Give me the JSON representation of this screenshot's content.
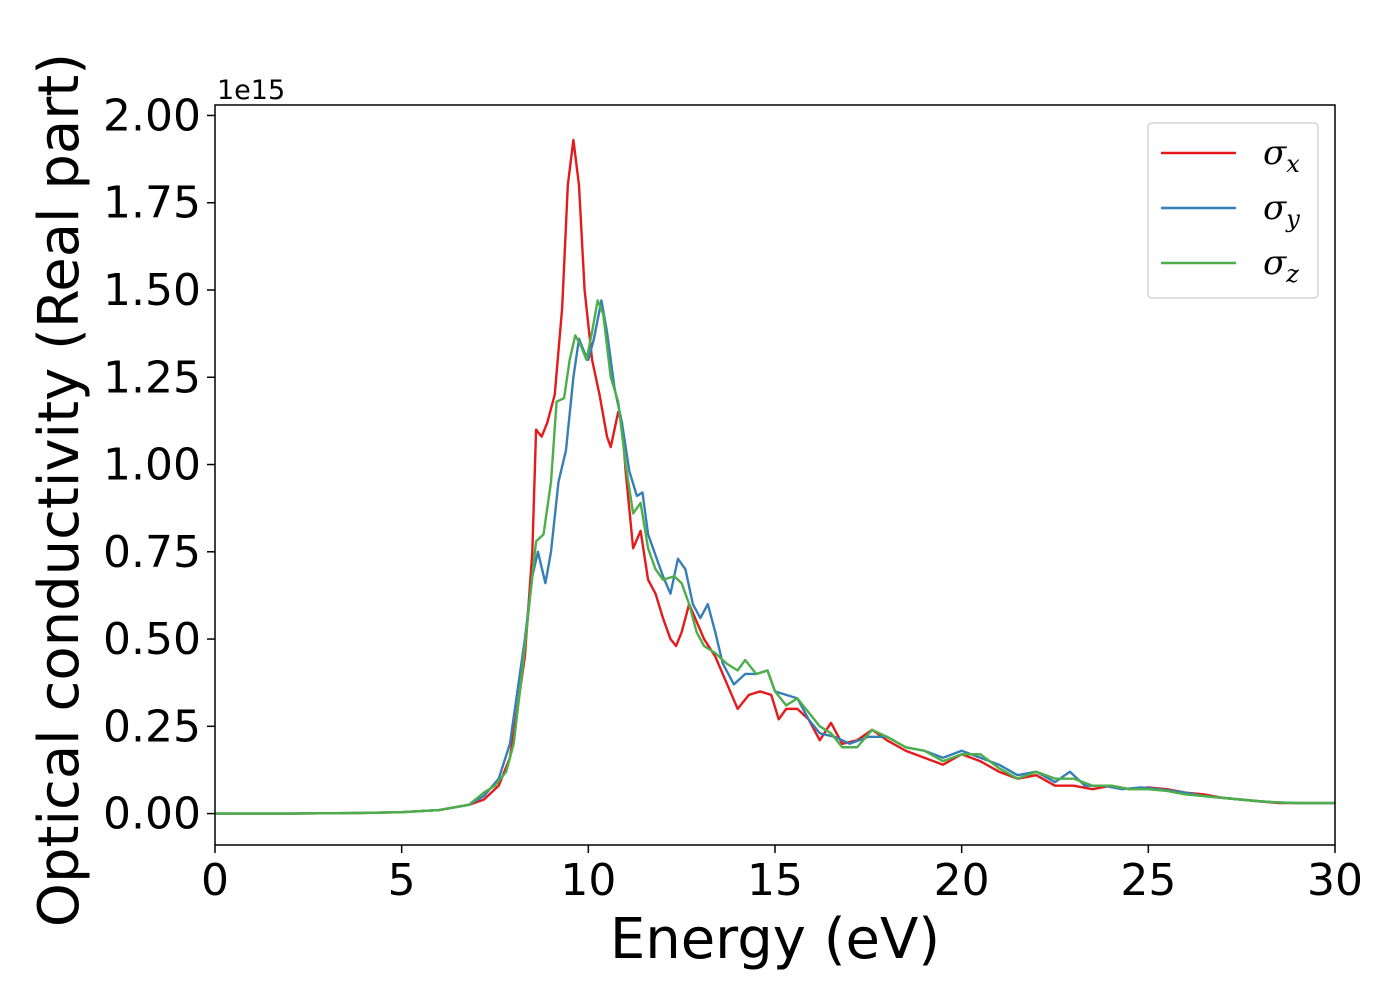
{
  "chart_data": {
    "type": "line",
    "xlabel": "Energy (eV)",
    "ylabel": "Optical conductivity (Real part)",
    "y_offset_label": "1e15",
    "y_scale_factor": 1000000000000000.0,
    "xlim": [
      0,
      30
    ],
    "ylim": [
      -0.09,
      2.03
    ],
    "xticks": [
      0,
      5,
      10,
      15,
      20,
      25,
      30
    ],
    "xtick_labels": [
      "0",
      "5",
      "10",
      "15",
      "20",
      "25",
      "30"
    ],
    "yticks": [
      0,
      0.25,
      0.5,
      0.75,
      1.0,
      1.25,
      1.5,
      1.75,
      2.0
    ],
    "ytick_labels": [
      "0.00",
      "0.25",
      "0.50",
      "0.75",
      "1.00",
      "1.25",
      "1.50",
      "1.75",
      "2.00"
    ],
    "grid": false,
    "legend_position": "top-right",
    "series": [
      {
        "name": "σx",
        "symbol": "σ",
        "subscript": "x",
        "color": "#e41a1c",
        "points": [
          [
            0,
            0
          ],
          [
            2,
            0
          ],
          [
            4,
            0.002
          ],
          [
            5,
            0.004
          ],
          [
            6,
            0.01
          ],
          [
            6.8,
            0.025
          ],
          [
            7.2,
            0.04
          ],
          [
            7.6,
            0.08
          ],
          [
            7.9,
            0.16
          ],
          [
            8.1,
            0.3
          ],
          [
            8.3,
            0.45
          ],
          [
            8.5,
            0.75
          ],
          [
            8.6,
            1.1
          ],
          [
            8.75,
            1.08
          ],
          [
            8.9,
            1.12
          ],
          [
            9.1,
            1.2
          ],
          [
            9.3,
            1.45
          ],
          [
            9.45,
            1.8
          ],
          [
            9.6,
            1.93
          ],
          [
            9.75,
            1.8
          ],
          [
            9.9,
            1.5
          ],
          [
            10.1,
            1.3
          ],
          [
            10.3,
            1.2
          ],
          [
            10.5,
            1.08
          ],
          [
            10.6,
            1.05
          ],
          [
            10.8,
            1.15
          ],
          [
            10.9,
            1.12
          ],
          [
            11.0,
            0.98
          ],
          [
            11.2,
            0.76
          ],
          [
            11.4,
            0.81
          ],
          [
            11.6,
            0.67
          ],
          [
            11.8,
            0.63
          ],
          [
            12.0,
            0.56
          ],
          [
            12.2,
            0.5
          ],
          [
            12.35,
            0.48
          ],
          [
            12.5,
            0.52
          ],
          [
            12.7,
            0.6
          ],
          [
            12.9,
            0.55
          ],
          [
            13.1,
            0.5
          ],
          [
            13.4,
            0.45
          ],
          [
            13.8,
            0.35
          ],
          [
            14.0,
            0.3
          ],
          [
            14.3,
            0.34
          ],
          [
            14.6,
            0.35
          ],
          [
            14.9,
            0.34
          ],
          [
            15.1,
            0.27
          ],
          [
            15.3,
            0.3
          ],
          [
            15.6,
            0.3
          ],
          [
            15.9,
            0.27
          ],
          [
            16.2,
            0.21
          ],
          [
            16.5,
            0.26
          ],
          [
            16.8,
            0.2
          ],
          [
            17.2,
            0.21
          ],
          [
            17.6,
            0.24
          ],
          [
            18.0,
            0.21
          ],
          [
            18.5,
            0.18
          ],
          [
            19.0,
            0.16
          ],
          [
            19.5,
            0.14
          ],
          [
            20.0,
            0.17
          ],
          [
            20.5,
            0.15
          ],
          [
            21.0,
            0.12
          ],
          [
            21.5,
            0.1
          ],
          [
            22.0,
            0.11
          ],
          [
            22.5,
            0.08
          ],
          [
            23.0,
            0.08
          ],
          [
            23.5,
            0.07
          ],
          [
            24.0,
            0.08
          ],
          [
            24.5,
            0.07
          ],
          [
            25.0,
            0.075
          ],
          [
            25.5,
            0.07
          ],
          [
            26.0,
            0.06
          ],
          [
            26.5,
            0.055
          ],
          [
            27.0,
            0.045
          ],
          [
            27.5,
            0.04
          ],
          [
            28.0,
            0.035
          ],
          [
            28.5,
            0.03
          ],
          [
            29.0,
            0.03
          ],
          [
            29.5,
            0.03
          ],
          [
            30,
            0.03
          ]
        ]
      },
      {
        "name": "σy",
        "symbol": "σ",
        "subscript": "y",
        "color": "#377eb8",
        "points": [
          [
            0,
            0
          ],
          [
            2,
            0
          ],
          [
            4,
            0.002
          ],
          [
            5,
            0.004
          ],
          [
            6,
            0.01
          ],
          [
            6.8,
            0.025
          ],
          [
            7.2,
            0.05
          ],
          [
            7.6,
            0.1
          ],
          [
            7.9,
            0.2
          ],
          [
            8.1,
            0.35
          ],
          [
            8.3,
            0.5
          ],
          [
            8.5,
            0.68
          ],
          [
            8.65,
            0.75
          ],
          [
            8.85,
            0.66
          ],
          [
            9.0,
            0.75
          ],
          [
            9.2,
            0.95
          ],
          [
            9.4,
            1.04
          ],
          [
            9.6,
            1.25
          ],
          [
            9.75,
            1.36
          ],
          [
            9.9,
            1.32
          ],
          [
            10.0,
            1.3
          ],
          [
            10.15,
            1.36
          ],
          [
            10.35,
            1.47
          ],
          [
            10.5,
            1.38
          ],
          [
            10.7,
            1.22
          ],
          [
            10.9,
            1.12
          ],
          [
            11.1,
            0.98
          ],
          [
            11.3,
            0.91
          ],
          [
            11.45,
            0.92
          ],
          [
            11.6,
            0.8
          ],
          [
            11.8,
            0.74
          ],
          [
            12.0,
            0.68
          ],
          [
            12.2,
            0.63
          ],
          [
            12.4,
            0.73
          ],
          [
            12.6,
            0.7
          ],
          [
            12.8,
            0.6
          ],
          [
            13.0,
            0.56
          ],
          [
            13.2,
            0.6
          ],
          [
            13.4,
            0.52
          ],
          [
            13.6,
            0.43
          ],
          [
            13.9,
            0.37
          ],
          [
            14.2,
            0.4
          ],
          [
            14.5,
            0.4
          ],
          [
            14.8,
            0.41
          ],
          [
            15.0,
            0.35
          ],
          [
            15.3,
            0.34
          ],
          [
            15.6,
            0.33
          ],
          [
            15.9,
            0.27
          ],
          [
            16.2,
            0.23
          ],
          [
            16.6,
            0.22
          ],
          [
            17.0,
            0.2
          ],
          [
            17.5,
            0.22
          ],
          [
            18.0,
            0.22
          ],
          [
            18.5,
            0.19
          ],
          [
            19.0,
            0.18
          ],
          [
            19.5,
            0.16
          ],
          [
            20.0,
            0.18
          ],
          [
            20.5,
            0.16
          ],
          [
            21.0,
            0.14
          ],
          [
            21.5,
            0.11
          ],
          [
            22.0,
            0.12
          ],
          [
            22.5,
            0.09
          ],
          [
            22.9,
            0.12
          ],
          [
            23.3,
            0.08
          ],
          [
            23.8,
            0.08
          ],
          [
            24.3,
            0.07
          ],
          [
            24.8,
            0.075
          ],
          [
            25.3,
            0.07
          ],
          [
            26.0,
            0.06
          ],
          [
            26.5,
            0.05
          ],
          [
            27.0,
            0.045
          ],
          [
            27.5,
            0.04
          ],
          [
            28.0,
            0.035
          ],
          [
            28.5,
            0.032
          ],
          [
            29.0,
            0.03
          ],
          [
            29.5,
            0.03
          ],
          [
            30,
            0.03
          ]
        ]
      },
      {
        "name": "σz",
        "symbol": "σ",
        "subscript": "z",
        "color": "#4daf4a",
        "points": [
          [
            0,
            0
          ],
          [
            2,
            0
          ],
          [
            4,
            0.002
          ],
          [
            5,
            0.004
          ],
          [
            6,
            0.01
          ],
          [
            6.8,
            0.025
          ],
          [
            7.2,
            0.06
          ],
          [
            7.5,
            0.08
          ],
          [
            7.8,
            0.12
          ],
          [
            8.0,
            0.2
          ],
          [
            8.2,
            0.38
          ],
          [
            8.4,
            0.58
          ],
          [
            8.6,
            0.78
          ],
          [
            8.8,
            0.8
          ],
          [
            9.0,
            0.95
          ],
          [
            9.15,
            1.18
          ],
          [
            9.35,
            1.19
          ],
          [
            9.5,
            1.3
          ],
          [
            9.65,
            1.37
          ],
          [
            9.8,
            1.34
          ],
          [
            9.95,
            1.3
          ],
          [
            10.1,
            1.38
          ],
          [
            10.25,
            1.47
          ],
          [
            10.4,
            1.43
          ],
          [
            10.6,
            1.25
          ],
          [
            10.8,
            1.18
          ],
          [
            11.0,
            1.0
          ],
          [
            11.2,
            0.86
          ],
          [
            11.4,
            0.89
          ],
          [
            11.6,
            0.76
          ],
          [
            11.8,
            0.7
          ],
          [
            12.0,
            0.67
          ],
          [
            12.3,
            0.68
          ],
          [
            12.5,
            0.66
          ],
          [
            12.7,
            0.6
          ],
          [
            12.9,
            0.52
          ],
          [
            13.1,
            0.48
          ],
          [
            13.4,
            0.46
          ],
          [
            13.7,
            0.43
          ],
          [
            14.0,
            0.41
          ],
          [
            14.2,
            0.44
          ],
          [
            14.5,
            0.4
          ],
          [
            14.8,
            0.41
          ],
          [
            15.0,
            0.35
          ],
          [
            15.3,
            0.31
          ],
          [
            15.6,
            0.33
          ],
          [
            15.9,
            0.29
          ],
          [
            16.2,
            0.25
          ],
          [
            16.5,
            0.23
          ],
          [
            16.8,
            0.19
          ],
          [
            17.2,
            0.19
          ],
          [
            17.6,
            0.24
          ],
          [
            18.0,
            0.22
          ],
          [
            18.5,
            0.19
          ],
          [
            19.0,
            0.18
          ],
          [
            19.5,
            0.15
          ],
          [
            20.0,
            0.17
          ],
          [
            20.5,
            0.17
          ],
          [
            21.0,
            0.13
          ],
          [
            21.5,
            0.1
          ],
          [
            22.0,
            0.12
          ],
          [
            22.5,
            0.1
          ],
          [
            23.0,
            0.1
          ],
          [
            23.5,
            0.08
          ],
          [
            24.0,
            0.08
          ],
          [
            24.5,
            0.07
          ],
          [
            25.0,
            0.07
          ],
          [
            25.5,
            0.065
          ],
          [
            26.0,
            0.055
          ],
          [
            26.5,
            0.05
          ],
          [
            27.0,
            0.045
          ],
          [
            27.5,
            0.04
          ],
          [
            28.0,
            0.035
          ],
          [
            28.5,
            0.032
          ],
          [
            29.0,
            0.03
          ],
          [
            29.5,
            0.03
          ],
          [
            30,
            0.03
          ]
        ]
      }
    ]
  }
}
